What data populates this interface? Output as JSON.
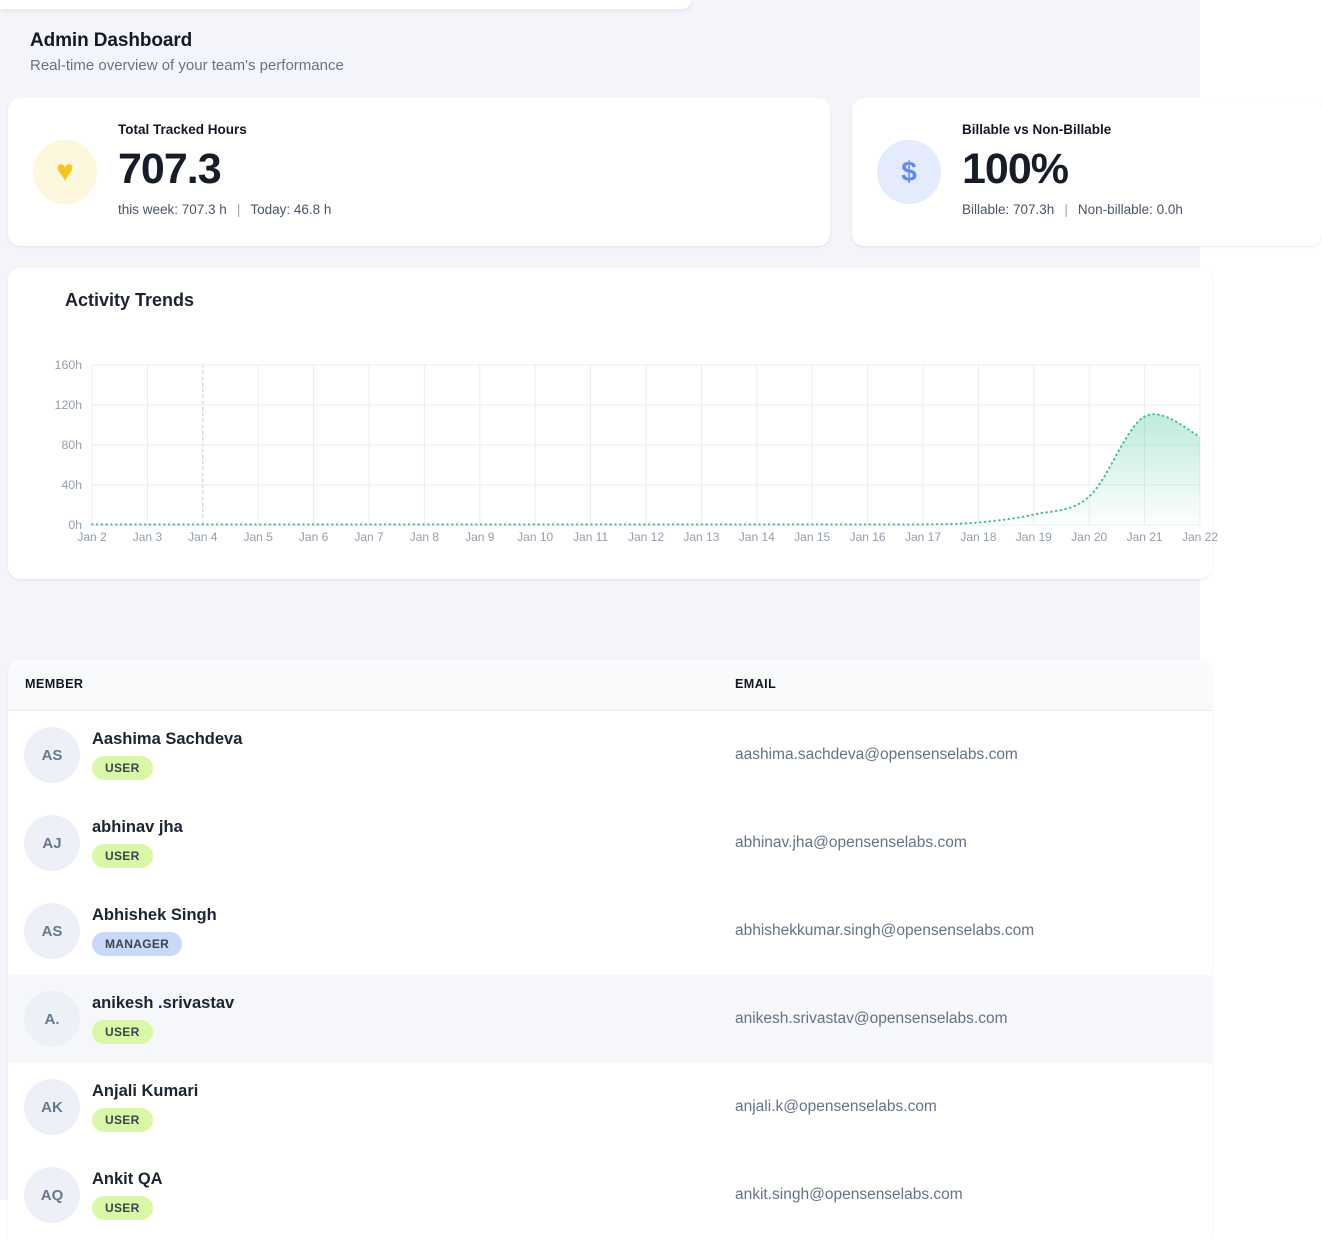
{
  "page": {
    "title": "Admin Dashboard",
    "subtitle": "Real-time overview of your team's performance"
  },
  "stats": [
    {
      "icon": "heart-icon",
      "icon_glyph": "♥",
      "title": "Total Tracked Hours",
      "value": "707.3",
      "sub_left": "this week: 707.3 h",
      "divider": "|",
      "sub_right": "Today: 46.8 h"
    },
    {
      "icon": "dollar-icon",
      "icon_glyph": "$",
      "title": "Billable vs Non-Billable",
      "value": "100%",
      "sub_left": "Billable: 707.3h",
      "divider": "|",
      "sub_right": "Non-billable: 0.0h"
    }
  ],
  "chart_data": {
    "type": "area",
    "title": "Activity Trends",
    "x": [
      "Jan 2",
      "Jan 3",
      "Jan 4",
      "Jan 5",
      "Jan 6",
      "Jan 7",
      "Jan 8",
      "Jan 9",
      "Jan 10",
      "Jan 11",
      "Jan 12",
      "Jan 13",
      "Jan 14",
      "Jan 15",
      "Jan 16",
      "Jan 17",
      "Jan 18",
      "Jan 19",
      "Jan 20",
      "Jan 21",
      "Jan 22"
    ],
    "values": [
      0,
      0,
      0,
      0,
      0,
      0,
      0,
      0,
      0,
      0,
      0,
      0,
      0,
      0,
      0,
      0,
      2,
      10,
      28,
      108,
      88
    ],
    "unit": "h",
    "ylabel": "",
    "xlabel": "",
    "ylim": [
      0,
      160
    ],
    "y_ticks_top_to_bottom": [
      "160h",
      "120h",
      "80h",
      "40h",
      "0h"
    ],
    "grid": true,
    "legend": false,
    "line_style": "dotted",
    "marker_vertical_line_at": "Jan 4"
  },
  "table": {
    "columns": [
      "MEMBER",
      "EMAIL"
    ],
    "rows": [
      {
        "initials": "AS",
        "name": "Aashima Sachdeva",
        "role": "USER",
        "email": "aashima.sachdeva@opensenselabs.com",
        "highlight": false
      },
      {
        "initials": "AJ",
        "name": "abhinav jha",
        "role": "USER",
        "email": "abhinav.jha@opensenselabs.com",
        "highlight": false
      },
      {
        "initials": "AS",
        "name": "Abhishek Singh",
        "role": "MANAGER",
        "email": "abhishekkumar.singh@opensenselabs.com",
        "highlight": false
      },
      {
        "initials": "A.",
        "name": "anikesh .srivastav",
        "role": "USER",
        "email": "anikesh.srivastav@opensenselabs.com",
        "highlight": true
      },
      {
        "initials": "AK",
        "name": "Anjali Kumari",
        "role": "USER",
        "email": "anjali.k@opensenselabs.com",
        "highlight": false
      },
      {
        "initials": "AQ",
        "name": "Ankit QA",
        "role": "USER",
        "email": "ankit.singh@opensenselabs.com",
        "highlight": false
      }
    ]
  },
  "colors": {
    "heart": "#f6c517",
    "heart_bg": "#fdf7de",
    "dollar": "#5b8bf3",
    "dollar_bg": "#e3ebfd",
    "chart_green": "#38c28c",
    "badge_green": "#d9f8a6",
    "badge_blue": "#c8d9f9"
  }
}
